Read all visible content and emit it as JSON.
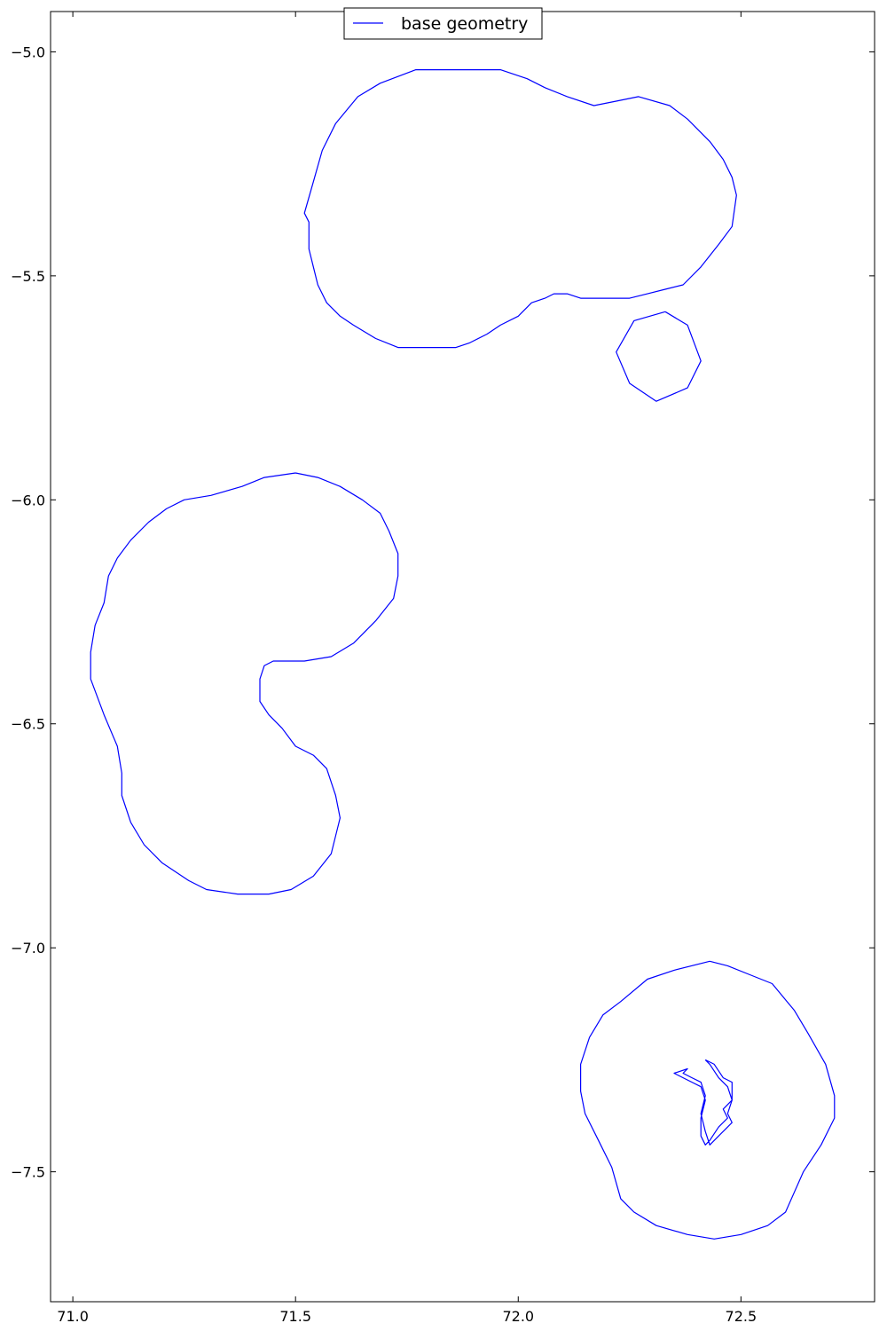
{
  "chart_data": {
    "type": "line",
    "title": "",
    "xlabel": "",
    "ylabel": "",
    "xlim": [
      70.95,
      72.8
    ],
    "ylim": [
      -7.79,
      -4.91
    ],
    "xticks": [
      71.0,
      71.5,
      72.0,
      72.5
    ],
    "xtick_labels": [
      "71.0",
      "71.5",
      "72.0",
      "72.5"
    ],
    "yticks": [
      -5.0,
      -5.5,
      -6.0,
      -6.5,
      -7.0,
      -7.5
    ],
    "ytick_labels": [
      "−5.0",
      "−5.5",
      "−6.0",
      "−6.5",
      "−7.0",
      "−7.5"
    ],
    "grid": false,
    "legend_position": "top-center",
    "legend": [
      "base geometry"
    ],
    "series": [
      {
        "name": "base geometry",
        "color": "#0000ff",
        "polylines": [
          [
            [
              71.54,
              -5.29
            ],
            [
              71.56,
              -5.22
            ],
            [
              71.59,
              -5.16
            ],
            [
              71.64,
              -5.1
            ],
            [
              71.69,
              -5.07
            ],
            [
              71.77,
              -5.04
            ],
            [
              71.86,
              -5.04
            ],
            [
              71.96,
              -5.04
            ],
            [
              72.02,
              -5.06
            ],
            [
              72.06,
              -5.08
            ],
            [
              72.11,
              -5.1
            ],
            [
              72.17,
              -5.12
            ],
            [
              72.22,
              -5.11
            ],
            [
              72.27,
              -5.1
            ],
            [
              72.34,
              -5.12
            ],
            [
              72.38,
              -5.15
            ],
            [
              72.43,
              -5.2
            ],
            [
              72.46,
              -5.24
            ],
            [
              72.48,
              -5.28
            ],
            [
              72.49,
              -5.32
            ],
            [
              72.48,
              -5.39
            ],
            [
              72.45,
              -5.43
            ],
            [
              72.41,
              -5.48
            ],
            [
              72.37,
              -5.52
            ],
            [
              72.33,
              -5.53
            ],
            [
              72.29,
              -5.54
            ],
            [
              72.25,
              -5.55
            ],
            [
              72.21,
              -5.55
            ],
            [
              72.17,
              -5.55
            ],
            [
              72.14,
              -5.55
            ],
            [
              72.11,
              -5.54
            ],
            [
              72.08,
              -5.54
            ],
            [
              72.06,
              -5.55
            ],
            [
              72.03,
              -5.56
            ],
            [
              72.0,
              -5.59
            ],
            [
              71.96,
              -5.61
            ],
            [
              71.93,
              -5.63
            ],
            [
              71.89,
              -5.65
            ],
            [
              71.86,
              -5.66
            ],
            [
              71.82,
              -5.66
            ],
            [
              71.77,
              -5.66
            ],
            [
              71.73,
              -5.66
            ],
            [
              71.68,
              -5.64
            ],
            [
              71.63,
              -5.61
            ],
            [
              71.6,
              -5.59
            ],
            [
              71.57,
              -5.56
            ],
            [
              71.55,
              -5.52
            ],
            [
              71.54,
              -5.48
            ],
            [
              71.53,
              -5.44
            ],
            [
              71.53,
              -5.38
            ],
            [
              71.52,
              -5.36
            ],
            [
              71.54,
              -5.29
            ]
          ],
          [
            [
              72.33,
              -5.58
            ],
            [
              72.38,
              -5.61
            ],
            [
              72.41,
              -5.69
            ],
            [
              72.38,
              -5.75
            ],
            [
              72.31,
              -5.78
            ],
            [
              72.25,
              -5.74
            ],
            [
              72.22,
              -5.67
            ],
            [
              72.26,
              -5.6
            ],
            [
              72.33,
              -5.58
            ]
          ],
          [
            [
              71.5,
              -5.94
            ],
            [
              71.55,
              -5.95
            ],
            [
              71.6,
              -5.97
            ],
            [
              71.65,
              -6.0
            ],
            [
              71.69,
              -6.03
            ],
            [
              71.71,
              -6.07
            ],
            [
              71.73,
              -6.12
            ],
            [
              71.73,
              -6.17
            ],
            [
              71.72,
              -6.22
            ],
            [
              71.68,
              -6.27
            ],
            [
              71.63,
              -6.32
            ],
            [
              71.58,
              -6.35
            ],
            [
              71.52,
              -6.36
            ],
            [
              71.48,
              -6.36
            ],
            [
              71.45,
              -6.36
            ],
            [
              71.43,
              -6.37
            ],
            [
              71.42,
              -6.4
            ],
            [
              71.42,
              -6.45
            ],
            [
              71.44,
              -6.48
            ],
            [
              71.47,
              -6.51
            ],
            [
              71.5,
              -6.55
            ],
            [
              71.54,
              -6.57
            ],
            [
              71.57,
              -6.6
            ],
            [
              71.59,
              -6.66
            ],
            [
              71.6,
              -6.71
            ],
            [
              71.58,
              -6.79
            ],
            [
              71.54,
              -6.84
            ],
            [
              71.49,
              -6.87
            ],
            [
              71.44,
              -6.88
            ],
            [
              71.37,
              -6.88
            ],
            [
              71.3,
              -6.87
            ],
            [
              71.26,
              -6.85
            ],
            [
              71.2,
              -6.81
            ],
            [
              71.16,
              -6.77
            ],
            [
              71.13,
              -6.72
            ],
            [
              71.11,
              -6.66
            ],
            [
              71.11,
              -6.61
            ],
            [
              71.1,
              -6.55
            ],
            [
              71.07,
              -6.48
            ],
            [
              71.04,
              -6.4
            ],
            [
              71.04,
              -6.34
            ],
            [
              71.05,
              -6.28
            ],
            [
              71.07,
              -6.23
            ],
            [
              71.08,
              -6.17
            ],
            [
              71.1,
              -6.13
            ],
            [
              71.13,
              -6.09
            ],
            [
              71.17,
              -6.05
            ],
            [
              71.21,
              -6.02
            ],
            [
              71.25,
              -6.0
            ],
            [
              71.31,
              -5.99
            ],
            [
              71.38,
              -5.97
            ],
            [
              71.43,
              -5.95
            ],
            [
              71.5,
              -5.94
            ]
          ],
          [
            [
              72.43,
              -7.03
            ],
            [
              72.47,
              -7.04
            ],
            [
              72.52,
              -7.06
            ],
            [
              72.57,
              -7.08
            ],
            [
              72.62,
              -7.14
            ],
            [
              72.65,
              -7.19
            ],
            [
              72.69,
              -7.26
            ],
            [
              72.71,
              -7.33
            ],
            [
              72.71,
              -7.38
            ],
            [
              72.68,
              -7.44
            ],
            [
              72.64,
              -7.5
            ],
            [
              72.6,
              -7.59
            ],
            [
              72.56,
              -7.62
            ],
            [
              72.5,
              -7.64
            ],
            [
              72.44,
              -7.65
            ],
            [
              72.38,
              -7.64
            ],
            [
              72.31,
              -7.62
            ],
            [
              72.26,
              -7.59
            ],
            [
              72.23,
              -7.56
            ],
            [
              72.21,
              -7.49
            ],
            [
              72.18,
              -7.43
            ],
            [
              72.15,
              -7.37
            ],
            [
              72.14,
              -7.32
            ],
            [
              72.14,
              -7.26
            ],
            [
              72.16,
              -7.2
            ],
            [
              72.19,
              -7.15
            ],
            [
              72.23,
              -7.12
            ],
            [
              72.29,
              -7.07
            ],
            [
              72.35,
              -7.05
            ],
            [
              72.43,
              -7.03
            ]
          ],
          [
            [
              72.42,
              -7.25
            ],
            [
              72.44,
              -7.26
            ],
            [
              72.46,
              -7.29
            ],
            [
              72.48,
              -7.3
            ],
            [
              72.48,
              -7.34
            ],
            [
              72.46,
              -7.36
            ],
            [
              72.47,
              -7.38
            ],
            [
              72.45,
              -7.4
            ],
            [
              72.43,
              -7.43
            ],
            [
              72.42,
              -7.44
            ],
            [
              72.41,
              -7.42
            ],
            [
              72.41,
              -7.38
            ],
            [
              72.42,
              -7.34
            ],
            [
              72.41,
              -7.31
            ],
            [
              72.39,
              -7.3
            ],
            [
              72.37,
              -7.29
            ],
            [
              72.35,
              -7.28
            ],
            [
              72.38,
              -7.27
            ],
            [
              72.37,
              -7.28
            ],
            [
              72.39,
              -7.29
            ],
            [
              72.41,
              -7.3
            ],
            [
              72.42,
              -7.33
            ],
            [
              72.41,
              -7.37
            ],
            [
              72.42,
              -7.41
            ],
            [
              72.43,
              -7.44
            ],
            [
              72.45,
              -7.42
            ],
            [
              72.48,
              -7.39
            ],
            [
              72.47,
              -7.37
            ],
            [
              72.48,
              -7.34
            ],
            [
              72.47,
              -7.31
            ],
            [
              72.45,
              -7.29
            ],
            [
              72.43,
              -7.26
            ],
            [
              72.42,
              -7.25
            ]
          ]
        ]
      }
    ]
  }
}
